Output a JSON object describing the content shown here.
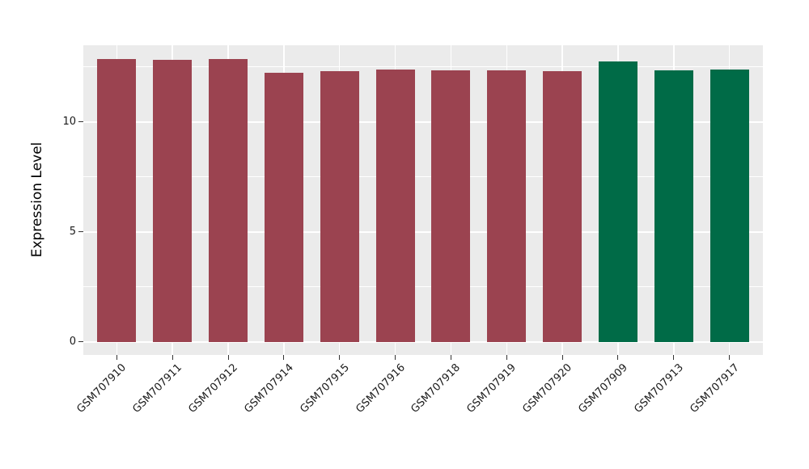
{
  "figure": {
    "background_color": "#ffffff",
    "panel_background_color": "#ebebeb",
    "grid_color": "#ffffff",
    "tick_color": "#333333",
    "text_color": "#1a1a1a"
  },
  "chart_data": {
    "type": "bar",
    "title": "",
    "xlabel": "",
    "ylabel": "Expression Level",
    "categories": [
      "GSM707910",
      "GSM707911",
      "GSM707912",
      "GSM707914",
      "GSM707915",
      "GSM707916",
      "GSM707918",
      "GSM707919",
      "GSM707920",
      "GSM707909",
      "GSM707913",
      "GSM707917"
    ],
    "values": [
      12.87,
      12.82,
      12.86,
      12.25,
      12.3,
      12.4,
      12.36,
      12.36,
      12.33,
      12.77,
      12.35,
      12.39
    ],
    "bar_colors": [
      "#9b4350",
      "#9b4350",
      "#9b4350",
      "#9b4350",
      "#9b4350",
      "#9b4350",
      "#9b4350",
      "#9b4350",
      "#9b4350",
      "#006b47",
      "#006b47",
      "#006b47"
    ],
    "color_groups": {
      "red": "#9b4350",
      "green": "#006b47"
    },
    "yticks": [
      0,
      5,
      10
    ],
    "ytick_labels": [
      "0",
      "5",
      "10"
    ],
    "yticks_minor": [
      2.5,
      7.5,
      12.5
    ],
    "ylim": [
      0,
      13.5
    ],
    "y_domain": [
      -0.59,
      13.49
    ],
    "grid": true,
    "legend": false,
    "x_tick_angle": 45
  }
}
